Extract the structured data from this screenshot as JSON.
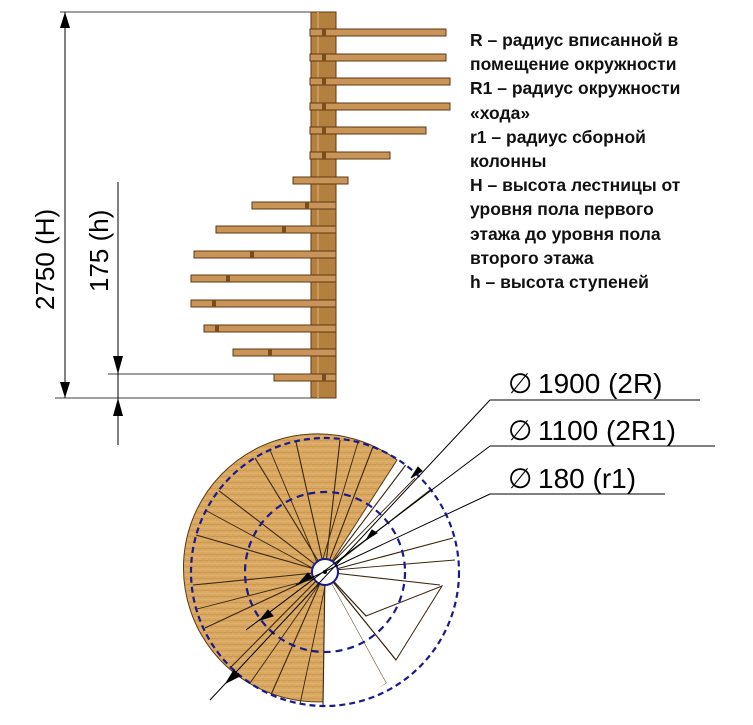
{
  "legend": [
    "R – радиус вписанной в",
    "помещение окружности",
    "R1 – радиус окружности",
    "«хода»",
    "r1 – радиус сборной",
    "колонны",
    "H – высота лестницы от",
    "уровня пола первого",
    "этажа до уровня пола",
    "второго этажа",
    "h – высота ступеней"
  ],
  "elevation": {
    "total_height_label": "2750 (H)",
    "step_height_label": "175 (h)"
  },
  "plan": {
    "outer_diameter_label": "1900 (2R)",
    "walk_diameter_label": "1100 (2R1)",
    "column_diameter_label": "180 (r1)",
    "diameter_symbol": "∅"
  },
  "colors": {
    "wood": "#d8a860",
    "wood_dark": "#8a5a28",
    "column": "#b07b3c",
    "dashed_circle": "#1a1a8c",
    "lines": "#000000"
  }
}
